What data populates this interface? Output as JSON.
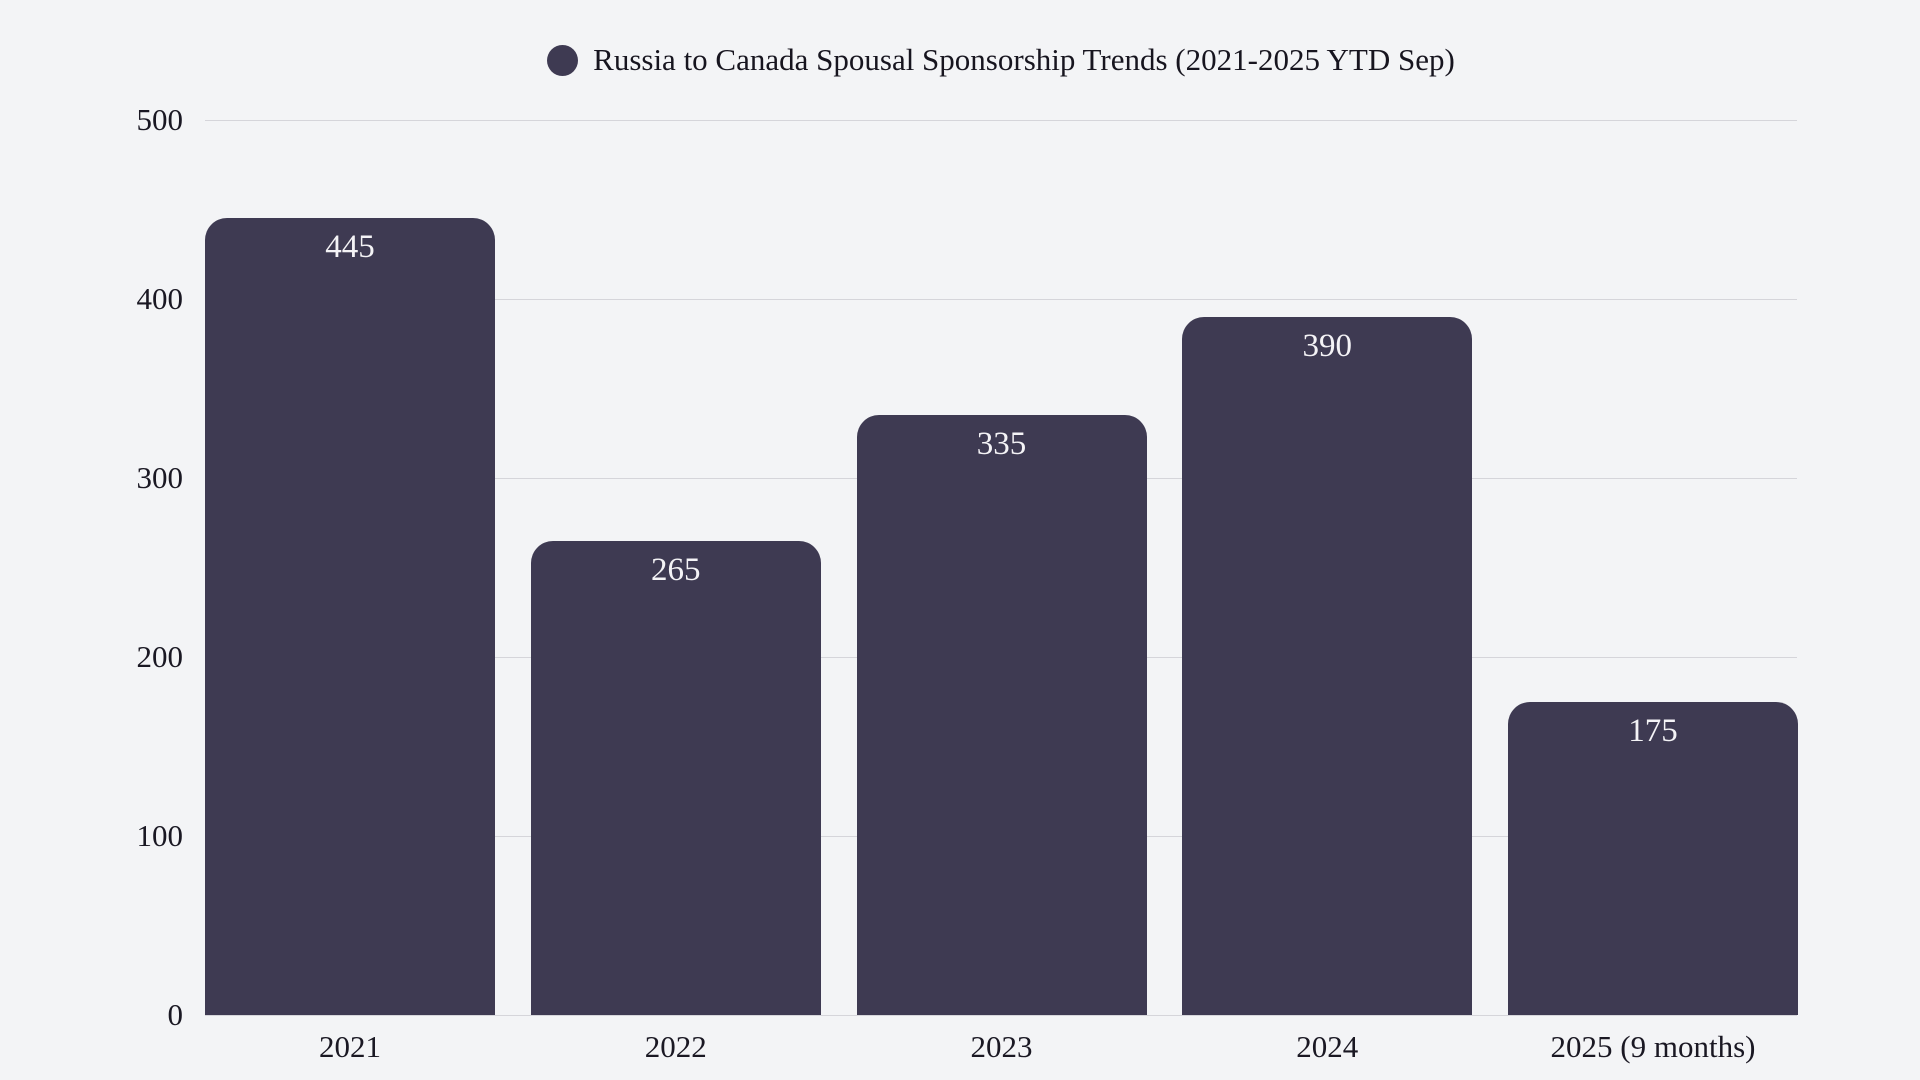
{
  "chart_data": {
    "type": "bar",
    "title": "Russia to Canada Spousal Sponsorship Trends (2021-2025 YTD Sep)",
    "legend_position": "top",
    "categories": [
      "2021",
      "2022",
      "2023",
      "2024",
      "2025 (9 months)"
    ],
    "values": [
      445,
      265,
      335,
      390,
      175
    ],
    "xlabel": "",
    "ylabel": "",
    "ylim": [
      0,
      500
    ],
    "yticks": [
      0,
      100,
      200,
      300,
      400,
      500
    ],
    "grid": "horizontal",
    "colors": {
      "background": "#f3f4f6",
      "bar": "#3e3a52",
      "bar_value_label": "#f4f3f6",
      "gridline": "#d5d5da",
      "axis_text": "#1a1823",
      "title_text": "#17151f"
    }
  }
}
